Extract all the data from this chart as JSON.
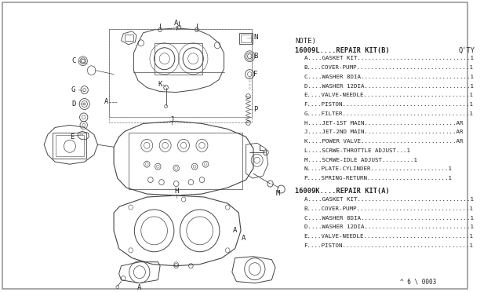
{
  "background_color": "#ffffff",
  "border_color": "#aaaaaa",
  "diagram_color": "#444444",
  "text_color": "#222222",
  "note_header": "NOTE)",
  "kit_b_header": "16009L....REPAIR KIT(B)",
  "kit_b_qty_header": "Q'TY",
  "kit_b_items": [
    "A....GASKET KIT................................1",
    "B....COVER-PUMP................................1",
    "C....WASHER 8DIA...............................1",
    "D....WASHER 12DIA..............................1",
    "E....VALVE-NEEDLE..............................1",
    "F....PISTON....................................1",
    "G....FILTER....................................1",
    "H....JET-1ST MAIN..........................AR",
    "J....JET-2ND MAIN..........................AR",
    "K....POWER VALVE...........................AR",
    "L....SCRWE-THROTTLE ADJUST...1",
    "M....SCRWE-IDLE ADJUST.........1",
    "N....PLATE-CYLINDER......................1",
    "P....SPRING-RETURN.......................1"
  ],
  "kit_a_header": "16009K....REPAIR KIT(A)",
  "kit_a_items": [
    "A....GASKET KIT................................1",
    "B....COVER-PUMP................................1",
    "C....WASHER 8DIA...............................1",
    "D....WASHER 12DIA..............................1",
    "E....VALVE-NEEDLE..............................1",
    "F....PISTON....................................1"
  ],
  "footer": "^ 6 \\ 0003",
  "fig_width": 6.4,
  "fig_height": 3.72,
  "dpi": 100
}
